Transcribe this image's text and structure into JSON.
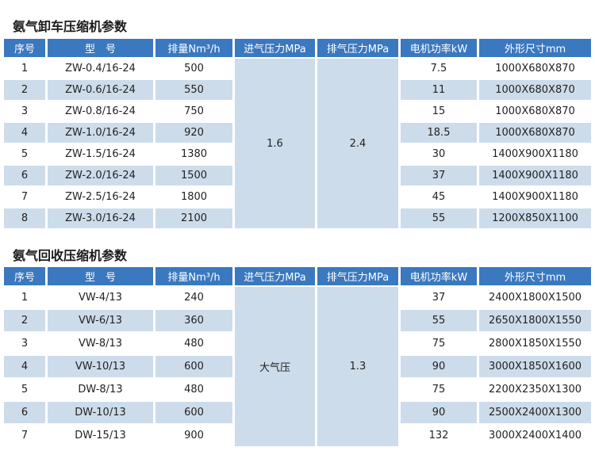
{
  "table1": {
    "title": "氨气卸车压缩机参数",
    "headers": [
      "序号",
      "型　号",
      "排量Nm³/h",
      "进气压力MPa",
      "排气压力MPa",
      "电机功率kW",
      "外形尺寸mm"
    ],
    "inlet_pressure": "1.6",
    "outlet_pressure": "2.4",
    "rows": [
      [
        "1",
        "ZW-0.4/16-24",
        "500",
        "7.5",
        "1000X680X870"
      ],
      [
        "2",
        "ZW-0.6/16-24",
        "550",
        "11",
        "1000X680X870"
      ],
      [
        "3",
        "ZW-0.8/16-24",
        "750",
        "15",
        "1000X680X870"
      ],
      [
        "4",
        "ZW-1.0/16-24",
        "920",
        "18.5",
        "1000X680X870"
      ],
      [
        "5",
        "ZW-1.5/16-24",
        "1380",
        "30",
        "1400X900X1180"
      ],
      [
        "6",
        "ZW-2.0/16-24",
        "1500",
        "37",
        "1400X900X1180"
      ],
      [
        "7",
        "ZW-2.5/16-24",
        "1800",
        "45",
        "1400X900X1180"
      ],
      [
        "8",
        "ZW-3.0/16-24",
        "2100",
        "55",
        "1200X850X1100"
      ]
    ]
  },
  "table2": {
    "title": "氨气回收压缩机参数",
    "headers": [
      "序号",
      "型　号",
      "排量Nm³/h",
      "进气压力MPa",
      "排气压力MPa",
      "电机功率kW",
      "外形尺寸mm"
    ],
    "inlet_pressure": "大气压",
    "outlet_pressure": "1.3",
    "rows": [
      [
        "1",
        "VW-4/13",
        "240",
        "37",
        "2400X1800X1500"
      ],
      [
        "2",
        "VW-6/13",
        "360",
        "55",
        "2650X1800X1550"
      ],
      [
        "3",
        "VW-8/13",
        "480",
        "75",
        "2800X1850X1550"
      ],
      [
        "4",
        "VW-10/13",
        "600",
        "90",
        "3000X1850X1600"
      ],
      [
        "5",
        "DW-8/13",
        "480",
        "75",
        "2200X2350X1300"
      ],
      [
        "6",
        "DW-10/13",
        "600",
        "90",
        "2500X2400X1300"
      ],
      [
        "7",
        "DW-15/13",
        "900",
        "132",
        "3000X2400X1400"
      ]
    ]
  },
  "colors": {
    "header": "#3a78c0",
    "band": "#cddcea"
  }
}
